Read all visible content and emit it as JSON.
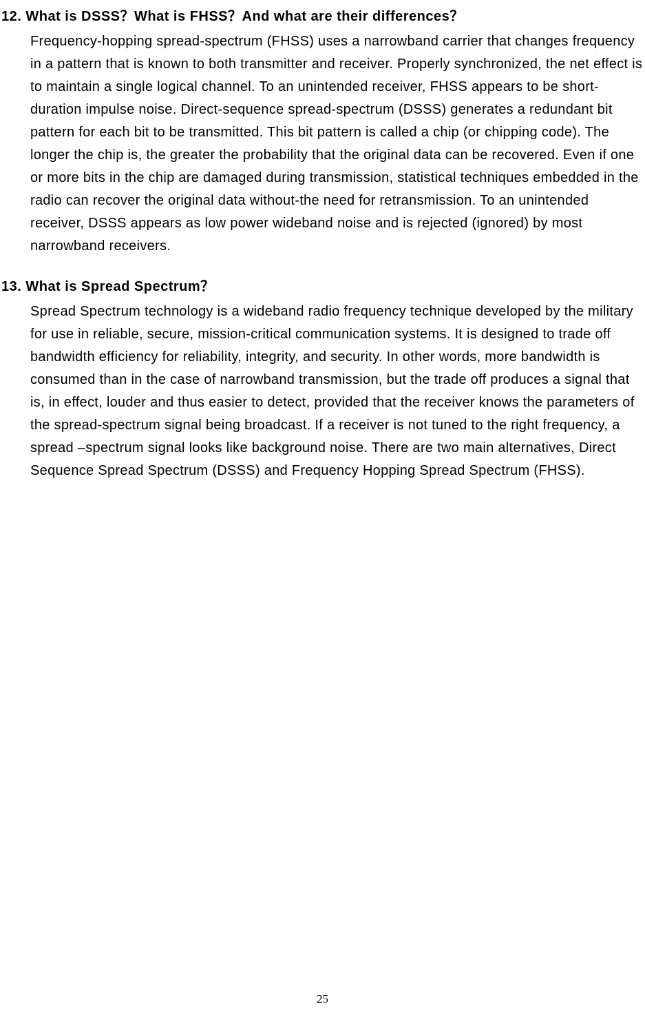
{
  "sections": [
    {
      "question": "12. What is DSSS？What is FHSS？And what are their differences？",
      "answer": "Frequency-hopping spread-spectrum (FHSS) uses a narrowband carrier that changes frequency in a pattern that is known to both transmitter and receiver. Properly synchronized, the net effect is to maintain a single logical channel. To an unintended receiver, FHSS appears to be short-duration impulse noise. Direct-sequence spread-spectrum (DSSS) generates a redundant bit pattern for each bit to be transmitted. This bit pattern is called a chip (or chipping code). The longer the chip is, the greater the probability that the original data can be recovered. Even if one or more bits in the chip are damaged during transmission, statistical techniques embedded in the radio can recover the original data without-the need for retransmission. To an unintended receiver, DSSS appears as low power wideband noise and is rejected (ignored) by most narrowband receivers."
    },
    {
      "question": "13. What is Spread Spectrum？",
      "answer": "Spread Spectrum technology is a wideband radio frequency technique developed by the military for use in reliable, secure, mission-critical communication systems. It is designed to trade off bandwidth efficiency for reliability, integrity, and security. In other words, more bandwidth is consumed than in the case of narrowband transmission, but the trade off produces a signal that is, in effect, louder and thus easier to detect, provided that the receiver knows the parameters of the spread-spectrum signal being broadcast. If a receiver is not tuned to the right frequency, a spread –spectrum signal looks like background noise. There are two main alternatives, Direct Sequence Spread Spectrum (DSSS) and Frequency Hopping Spread Spectrum (FHSS)."
    }
  ],
  "pageNumber": "25"
}
